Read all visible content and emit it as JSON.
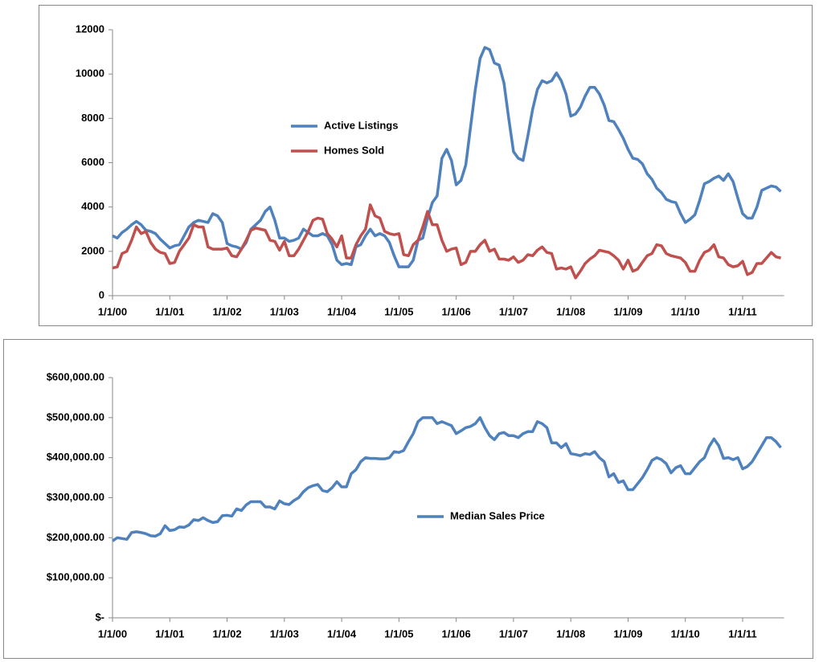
{
  "chart_data": [
    {
      "type": "line",
      "categories": [
        "1/1/00",
        null,
        null,
        null,
        null,
        null,
        null,
        null,
        null,
        null,
        null,
        null,
        "1/1/01",
        null,
        null,
        null,
        null,
        null,
        null,
        null,
        null,
        null,
        null,
        null,
        "1/1/02",
        null,
        null,
        null,
        null,
        null,
        null,
        null,
        null,
        null,
        null,
        null,
        "1/1/03",
        null,
        null,
        null,
        null,
        null,
        null,
        null,
        null,
        null,
        null,
        null,
        "1/1/04",
        null,
        null,
        null,
        null,
        null,
        null,
        null,
        null,
        null,
        null,
        null,
        "1/1/05",
        null,
        null,
        null,
        null,
        null,
        null,
        null,
        null,
        null,
        null,
        null,
        "1/1/06",
        null,
        null,
        null,
        null,
        null,
        null,
        null,
        null,
        null,
        null,
        null,
        "1/1/07",
        null,
        null,
        null,
        null,
        null,
        null,
        null,
        null,
        null,
        null,
        null,
        "1/1/08",
        null,
        null,
        null,
        null,
        null,
        null,
        null,
        null,
        null,
        null,
        null,
        "1/1/09",
        null,
        null,
        null,
        null,
        null,
        null,
        null,
        null,
        null,
        null,
        null,
        "1/1/10",
        null,
        null,
        null,
        null,
        null,
        null,
        null,
        null,
        null,
        null,
        null,
        "1/1/11",
        null,
        null,
        null,
        null,
        null,
        null,
        null,
        null
      ],
      "series": [
        {
          "name": "Active Listings",
          "color": "#4f81bd",
          "values": [
            2700,
            2600,
            2850,
            3000,
            3200,
            3350,
            3200,
            2950,
            2900,
            2800,
            2550,
            2350,
            2150,
            2250,
            2300,
            2700,
            3100,
            3300,
            3400,
            3350,
            3300,
            3700,
            3600,
            3300,
            2350,
            2250,
            2200,
            2100,
            2400,
            3000,
            3200,
            3400,
            3800,
            4000,
            3400,
            2600,
            2600,
            2450,
            2500,
            2600,
            3000,
            2850,
            2700,
            2700,
            2800,
            2700,
            2300,
            1600,
            1400,
            1450,
            1400,
            2200,
            2300,
            2700,
            3000,
            2700,
            2800,
            2700,
            2400,
            1800,
            1300,
            1300,
            1300,
            1600,
            2500,
            2600,
            3500,
            4200,
            4500,
            6200,
            6600,
            6100,
            5000,
            5200,
            5900,
            7600,
            9300,
            10700,
            11200,
            11100,
            10500,
            10400,
            9600,
            8000,
            6500,
            6200,
            6100,
            7200,
            8400,
            9300,
            9700,
            9600,
            9700,
            10050,
            9700,
            9100,
            8100,
            8200,
            8500,
            9000,
            9400,
            9400,
            9100,
            8600,
            7900,
            7850,
            7500,
            7100,
            6600,
            6200,
            6150,
            5950,
            5500,
            5250,
            4850,
            4650,
            4350,
            4250,
            4200,
            3700,
            3300,
            3450,
            3650,
            4300,
            5050,
            5150,
            5300,
            5400,
            5200,
            5500,
            5150,
            4400,
            3700,
            3500,
            3500,
            4000,
            4750,
            4850,
            4950,
            4900,
            4700
          ]
        },
        {
          "name": "Homes Sold",
          "color": "#c0504d",
          "values": [
            1250,
            1300,
            1900,
            2000,
            2500,
            3100,
            2800,
            2900,
            2400,
            2100,
            1950,
            1900,
            1450,
            1500,
            2000,
            2300,
            2600,
            3200,
            3100,
            3100,
            2200,
            2100,
            2100,
            2100,
            2150,
            1800,
            1750,
            2100,
            2500,
            2950,
            3050,
            3000,
            2950,
            2500,
            2450,
            2050,
            2450,
            1800,
            1800,
            2100,
            2500,
            2900,
            3400,
            3500,
            3450,
            2800,
            2550,
            2200,
            2700,
            1700,
            1700,
            2300,
            2700,
            3000,
            4100,
            3600,
            3500,
            2900,
            2800,
            2750,
            2800,
            1850,
            1800,
            2300,
            2500,
            3100,
            3800,
            3200,
            3200,
            2500,
            2000,
            2100,
            2150,
            1400,
            1500,
            2000,
            2000,
            2300,
            2500,
            2000,
            2100,
            1650,
            1650,
            1600,
            1750,
            1500,
            1600,
            1850,
            1800,
            2050,
            2200,
            1950,
            1900,
            1200,
            1250,
            1200,
            1300,
            800,
            1100,
            1450,
            1650,
            1800,
            2050,
            2000,
            1950,
            1800,
            1600,
            1200,
            1600,
            1100,
            1200,
            1500,
            1800,
            1900,
            2300,
            2250,
            1900,
            1800,
            1750,
            1700,
            1500,
            1100,
            1100,
            1600,
            1950,
            2050,
            2300,
            1750,
            1700,
            1400,
            1300,
            1350,
            1550,
            950,
            1050,
            1450,
            1450,
            1700,
            1950,
            1750,
            1700
          ]
        }
      ],
      "ylim": [
        0,
        12000
      ],
      "yticks": [
        0,
        2000,
        4000,
        6000,
        8000,
        10000,
        12000
      ],
      "grid": false
    },
    {
      "type": "line",
      "categories": [
        "1/1/00",
        null,
        null,
        null,
        null,
        null,
        null,
        null,
        null,
        null,
        null,
        null,
        "1/1/01",
        null,
        null,
        null,
        null,
        null,
        null,
        null,
        null,
        null,
        null,
        null,
        "1/1/02",
        null,
        null,
        null,
        null,
        null,
        null,
        null,
        null,
        null,
        null,
        null,
        "1/1/03",
        null,
        null,
        null,
        null,
        null,
        null,
        null,
        null,
        null,
        null,
        null,
        "1/1/04",
        null,
        null,
        null,
        null,
        null,
        null,
        null,
        null,
        null,
        null,
        null,
        "1/1/05",
        null,
        null,
        null,
        null,
        null,
        null,
        null,
        null,
        null,
        null,
        null,
        "1/1/06",
        null,
        null,
        null,
        null,
        null,
        null,
        null,
        null,
        null,
        null,
        null,
        "1/1/07",
        null,
        null,
        null,
        null,
        null,
        null,
        null,
        null,
        null,
        null,
        null,
        "1/1/08",
        null,
        null,
        null,
        null,
        null,
        null,
        null,
        null,
        null,
        null,
        null,
        "1/1/09",
        null,
        null,
        null,
        null,
        null,
        null,
        null,
        null,
        null,
        null,
        null,
        "1/1/10",
        null,
        null,
        null,
        null,
        null,
        null,
        null,
        null,
        null,
        null,
        null,
        "1/1/11",
        null,
        null,
        null,
        null,
        null,
        null,
        null,
        null
      ],
      "series": [
        {
          "name": "Median Sales Price",
          "color": "#4f81bd",
          "values": [
            192000,
            200000,
            198000,
            196000,
            213000,
            215000,
            213000,
            210000,
            205000,
            204000,
            210000,
            230000,
            218000,
            220000,
            227000,
            226000,
            232000,
            245000,
            243000,
            250000,
            243000,
            238000,
            240000,
            255000,
            256000,
            254000,
            272000,
            268000,
            282000,
            290000,
            290000,
            290000,
            277000,
            277000,
            272000,
            292000,
            285000,
            283000,
            293000,
            300000,
            315000,
            325000,
            330000,
            333000,
            318000,
            315000,
            325000,
            340000,
            327000,
            327000,
            360000,
            370000,
            390000,
            400000,
            398000,
            398000,
            397000,
            397000,
            400000,
            415000,
            413000,
            418000,
            440000,
            460000,
            490000,
            500000,
            500000,
            500000,
            485000,
            490000,
            485000,
            480000,
            460000,
            467000,
            475000,
            478000,
            485000,
            500000,
            475000,
            455000,
            445000,
            460000,
            463000,
            455000,
            455000,
            450000,
            460000,
            465000,
            465000,
            490000,
            485000,
            475000,
            437000,
            437000,
            425000,
            435000,
            410000,
            408000,
            405000,
            410000,
            408000,
            415000,
            400000,
            390000,
            352000,
            360000,
            338000,
            342000,
            320000,
            320000,
            335000,
            350000,
            370000,
            393000,
            400000,
            395000,
            385000,
            362000,
            375000,
            380000,
            360000,
            360000,
            375000,
            390000,
            400000,
            428000,
            447000,
            430000,
            398000,
            400000,
            395000,
            400000,
            372000,
            378000,
            390000,
            410000,
            430000,
            450000,
            450000,
            440000,
            425000
          ]
        }
      ],
      "ylim": [
        0,
        600000
      ],
      "yticks": [
        {
          "value": 0,
          "label": "$-"
        },
        {
          "value": 100000,
          "label": "$100,000.00"
        },
        {
          "value": 200000,
          "label": "$200,000.00"
        },
        {
          "value": 300000,
          "label": "$300,000.00"
        },
        {
          "value": 400000,
          "label": "$400,000.00"
        },
        {
          "value": 500000,
          "label": "$500,000.00"
        },
        {
          "value": 600000,
          "label": "$600,000.00"
        }
      ],
      "grid": false
    }
  ]
}
